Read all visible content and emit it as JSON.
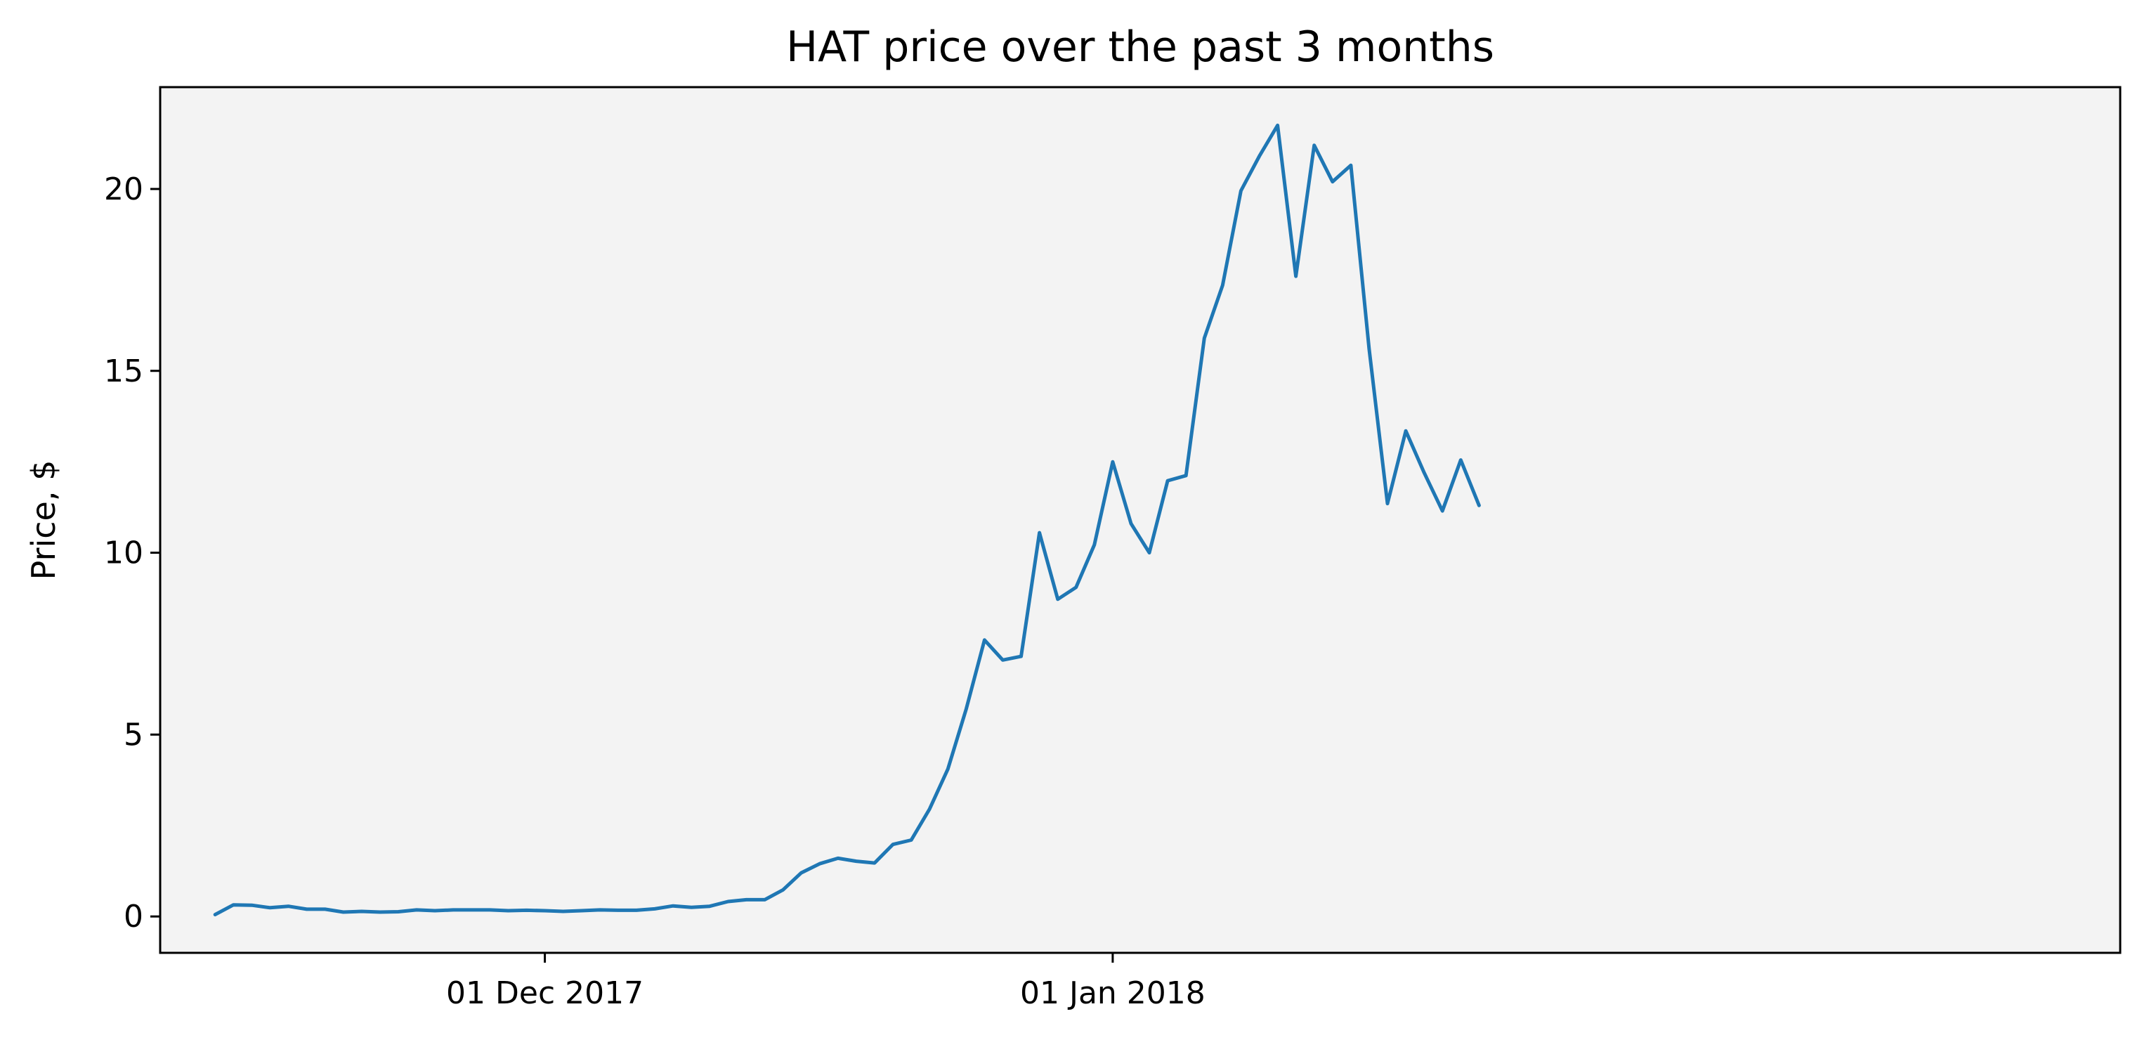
{
  "chart_data": {
    "type": "line",
    "title": "HAT price over the past 3 months",
    "xlabel": "",
    "ylabel": "Price, $",
    "x_ticks": [
      {
        "date": "2017-12-01",
        "label": "01 Dec 2017"
      },
      {
        "date": "2018-01-01",
        "label": "01 Jan 2018"
      }
    ],
    "y_ticks": [
      0,
      5,
      10,
      15,
      20
    ],
    "xlim": [
      "2017-11-10",
      "2018-02-25"
    ],
    "ylim": [
      -1,
      22.8
    ],
    "grid": false,
    "series": [
      {
        "color": "#1f77b4",
        "points": [
          [
            "2017-11-13",
            0.05
          ],
          [
            "2017-11-14",
            0.32
          ],
          [
            "2017-11-15",
            0.31
          ],
          [
            "2017-11-16",
            0.24
          ],
          [
            "2017-11-17",
            0.28
          ],
          [
            "2017-11-18",
            0.2
          ],
          [
            "2017-11-19",
            0.2
          ],
          [
            "2017-11-20",
            0.12
          ],
          [
            "2017-11-21",
            0.14
          ],
          [
            "2017-11-22",
            0.12
          ],
          [
            "2017-11-23",
            0.13
          ],
          [
            "2017-11-24",
            0.18
          ],
          [
            "2017-11-25",
            0.16
          ],
          [
            "2017-11-26",
            0.18
          ],
          [
            "2017-11-27",
            0.18
          ],
          [
            "2017-11-28",
            0.18
          ],
          [
            "2017-11-29",
            0.16
          ],
          [
            "2017-11-30",
            0.17
          ],
          [
            "2017-12-01",
            0.16
          ],
          [
            "2017-12-02",
            0.14
          ],
          [
            "2017-12-03",
            0.16
          ],
          [
            "2017-12-04",
            0.18
          ],
          [
            "2017-12-05",
            0.17
          ],
          [
            "2017-12-06",
            0.17
          ],
          [
            "2017-12-07",
            0.21
          ],
          [
            "2017-12-08",
            0.29
          ],
          [
            "2017-12-09",
            0.25
          ],
          [
            "2017-12-10",
            0.28
          ],
          [
            "2017-12-11",
            0.41
          ],
          [
            "2017-12-12",
            0.46
          ],
          [
            "2017-12-13",
            0.46
          ],
          [
            "2017-12-14",
            0.73
          ],
          [
            "2017-12-15",
            1.2
          ],
          [
            "2017-12-16",
            1.45
          ],
          [
            "2017-12-17",
            1.6
          ],
          [
            "2017-12-18",
            1.52
          ],
          [
            "2017-12-19",
            1.47
          ],
          [
            "2017-12-20",
            1.98
          ],
          [
            "2017-12-21",
            2.1
          ],
          [
            "2017-12-22",
            2.95
          ],
          [
            "2017-12-23",
            4.05
          ],
          [
            "2017-12-24",
            5.7
          ],
          [
            "2017-12-25",
            7.6
          ],
          [
            "2017-12-26",
            7.05
          ],
          [
            "2017-12-27",
            7.15
          ],
          [
            "2017-12-28",
            10.55
          ],
          [
            "2017-12-29",
            8.72
          ],
          [
            "2017-12-30",
            9.05
          ],
          [
            "2017-12-31",
            10.22
          ],
          [
            "2018-01-01",
            12.5
          ],
          [
            "2018-01-02",
            10.8
          ],
          [
            "2018-01-03",
            10.0
          ],
          [
            "2018-01-04",
            11.98
          ],
          [
            "2018-01-05",
            12.12
          ],
          [
            "2018-01-06",
            15.9
          ],
          [
            "2018-01-07",
            17.35
          ],
          [
            "2018-01-08",
            19.95
          ],
          [
            "2018-01-09",
            20.9
          ],
          [
            "2018-01-10",
            21.75
          ],
          [
            "2018-01-11",
            17.6
          ],
          [
            "2018-01-12",
            21.2
          ],
          [
            "2018-01-13",
            20.2
          ],
          [
            "2018-01-14",
            20.65
          ],
          [
            "2018-01-15",
            15.6
          ],
          [
            "2018-01-16",
            11.35
          ],
          [
            "2018-01-17",
            13.35
          ],
          [
            "2018-01-18",
            12.2
          ],
          [
            "2018-01-19",
            11.15
          ],
          [
            "2018-01-20",
            12.55
          ],
          [
            "2018-01-21",
            11.3
          ]
        ]
      }
    ]
  }
}
